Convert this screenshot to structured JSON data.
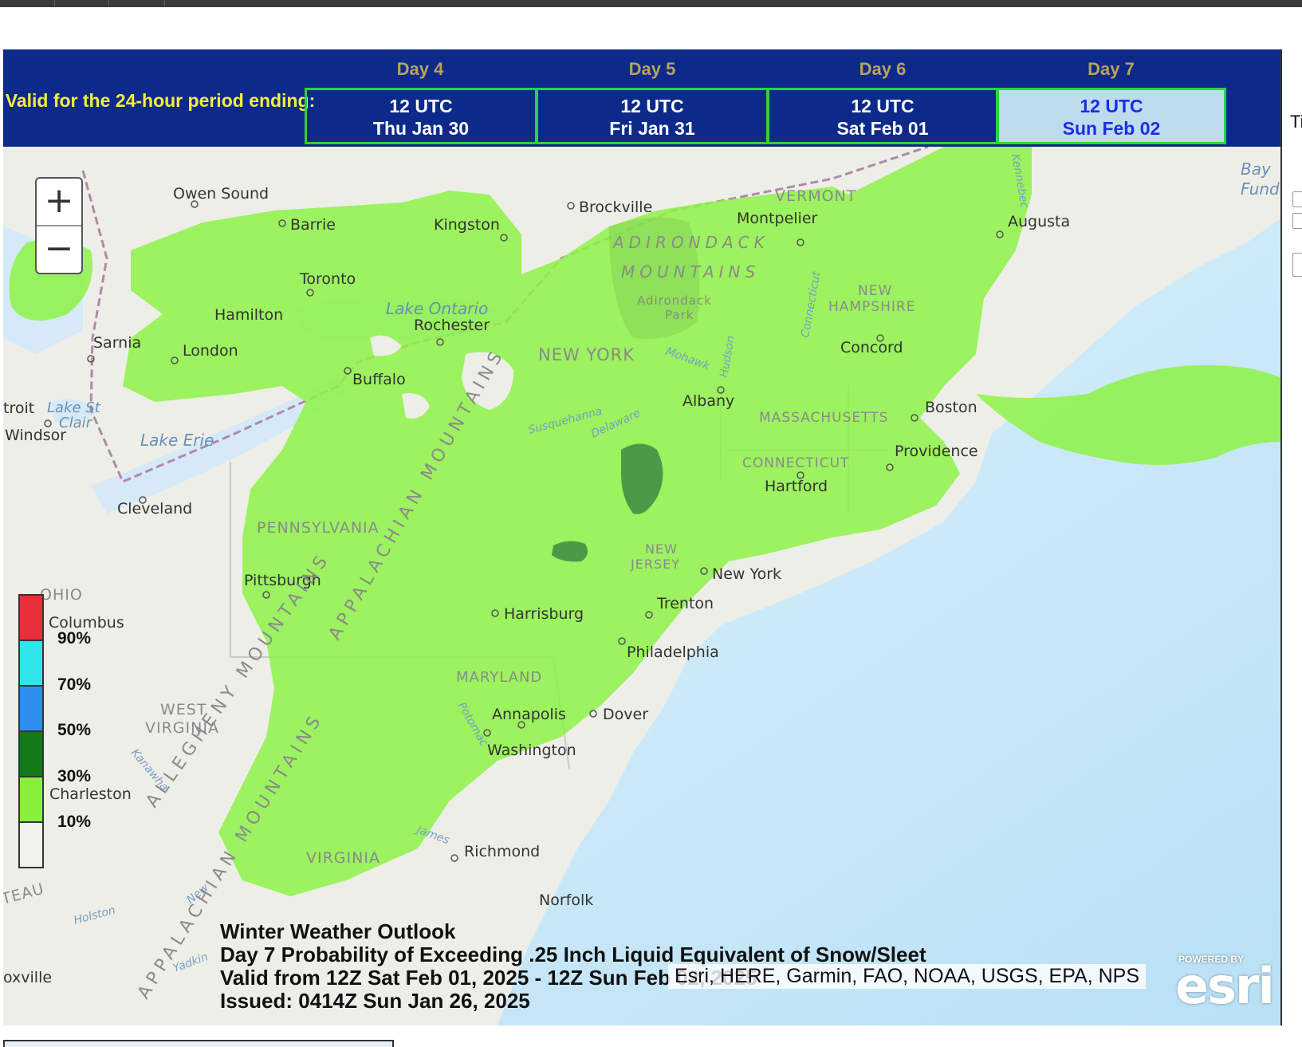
{
  "header": {
    "valid_label": "Valid for the 24-hour period ending:",
    "days": [
      {
        "day": "Day 4",
        "line1": "12 UTC",
        "line2": "Thu Jan 30",
        "active": false
      },
      {
        "day": "Day 5",
        "line1": "12 UTC",
        "line2": "Fri Jan 31",
        "active": false
      },
      {
        "day": "Day 6",
        "line1": "12 UTC",
        "line2": "Sat Feb 01",
        "active": false
      },
      {
        "day": "Day 7",
        "line1": "12 UTC",
        "line2": "Sun Feb 02",
        "active": true
      }
    ]
  },
  "zoom": {
    "in_label": "+",
    "out_label": "−"
  },
  "legend": {
    "labels": [
      "90%",
      "70%",
      "50%",
      "30%",
      "10%"
    ],
    "colors": [
      "#e8303a",
      "#2ee6ea",
      "#2f8ff0",
      "#127a18",
      "#86f03c",
      "#eef3ec"
    ]
  },
  "caption": {
    "line1": "Winter Weather Outlook",
    "line2": "Day 7 Probability of Exceeding .25 Inch Liquid Equivalent of Snow/Sleet",
    "line3": "Valid from 12Z Sat Feb 01, 2025 - 12Z Sun Feb 02, 2025",
    "line4": "Issued: 0414Z Sun Jan 26, 2025"
  },
  "attribution": "Esri, HERE, Garmin, FAO, NOAA, USGS, EPA, NPS",
  "esri_logo": {
    "powered": "POWERED BY",
    "text": "esri"
  },
  "side_panel": {
    "label": "Ti"
  },
  "map_labels": {
    "cities": [
      "Owen Sound",
      "Barrie",
      "Kingston",
      "Brockville",
      "Montpelier",
      "Augusta",
      "Toronto",
      "Hamilton",
      "Rochester",
      "Sarnia",
      "London",
      "Buffalo",
      "Concord",
      "Albany",
      "Boston",
      "troit",
      "Windsor",
      "Providence",
      "Hartford",
      "Cleveland",
      "New York",
      "Pittsburgh",
      "Trenton",
      "Harrisburg",
      "Columbus",
      "Philadelphia",
      "Annapolis",
      "Dover",
      "Washington",
      "Charleston",
      "Richmond",
      "Norfolk",
      "oxville"
    ],
    "regions": [
      "VERMONT",
      "ADIRONDACK",
      "MOUNTAINS",
      "Adirondack",
      "Park",
      "NEW",
      "HAMPSHIRE",
      "NEW YORK",
      "MASSACHUSETTS",
      "CONNECTICUT",
      "PENNSYLVANIA",
      "NEW",
      "JERSEY",
      "OHIO",
      "MARYLAND",
      "WEST",
      "VIRGINIA",
      "VIRGINIA",
      "TEAU"
    ],
    "water": [
      "Lake Ontario",
      "Lake St",
      "Clair",
      "Lake Erie",
      "Bay",
      "Fund"
    ],
    "rivers": [
      "Hudson",
      "Mohawk",
      "Susquehanna",
      "Delaware",
      "Connecticut",
      "Kennebec",
      "Potomac",
      "Kanawha",
      "James",
      "Holston",
      "New",
      "Yadkin"
    ],
    "mountains": [
      "ALLEGHENY MOUNTAINS",
      "APPALACHIAN MOUNTAINS",
      "APPALACHIAN MOUNTAINS"
    ]
  }
}
